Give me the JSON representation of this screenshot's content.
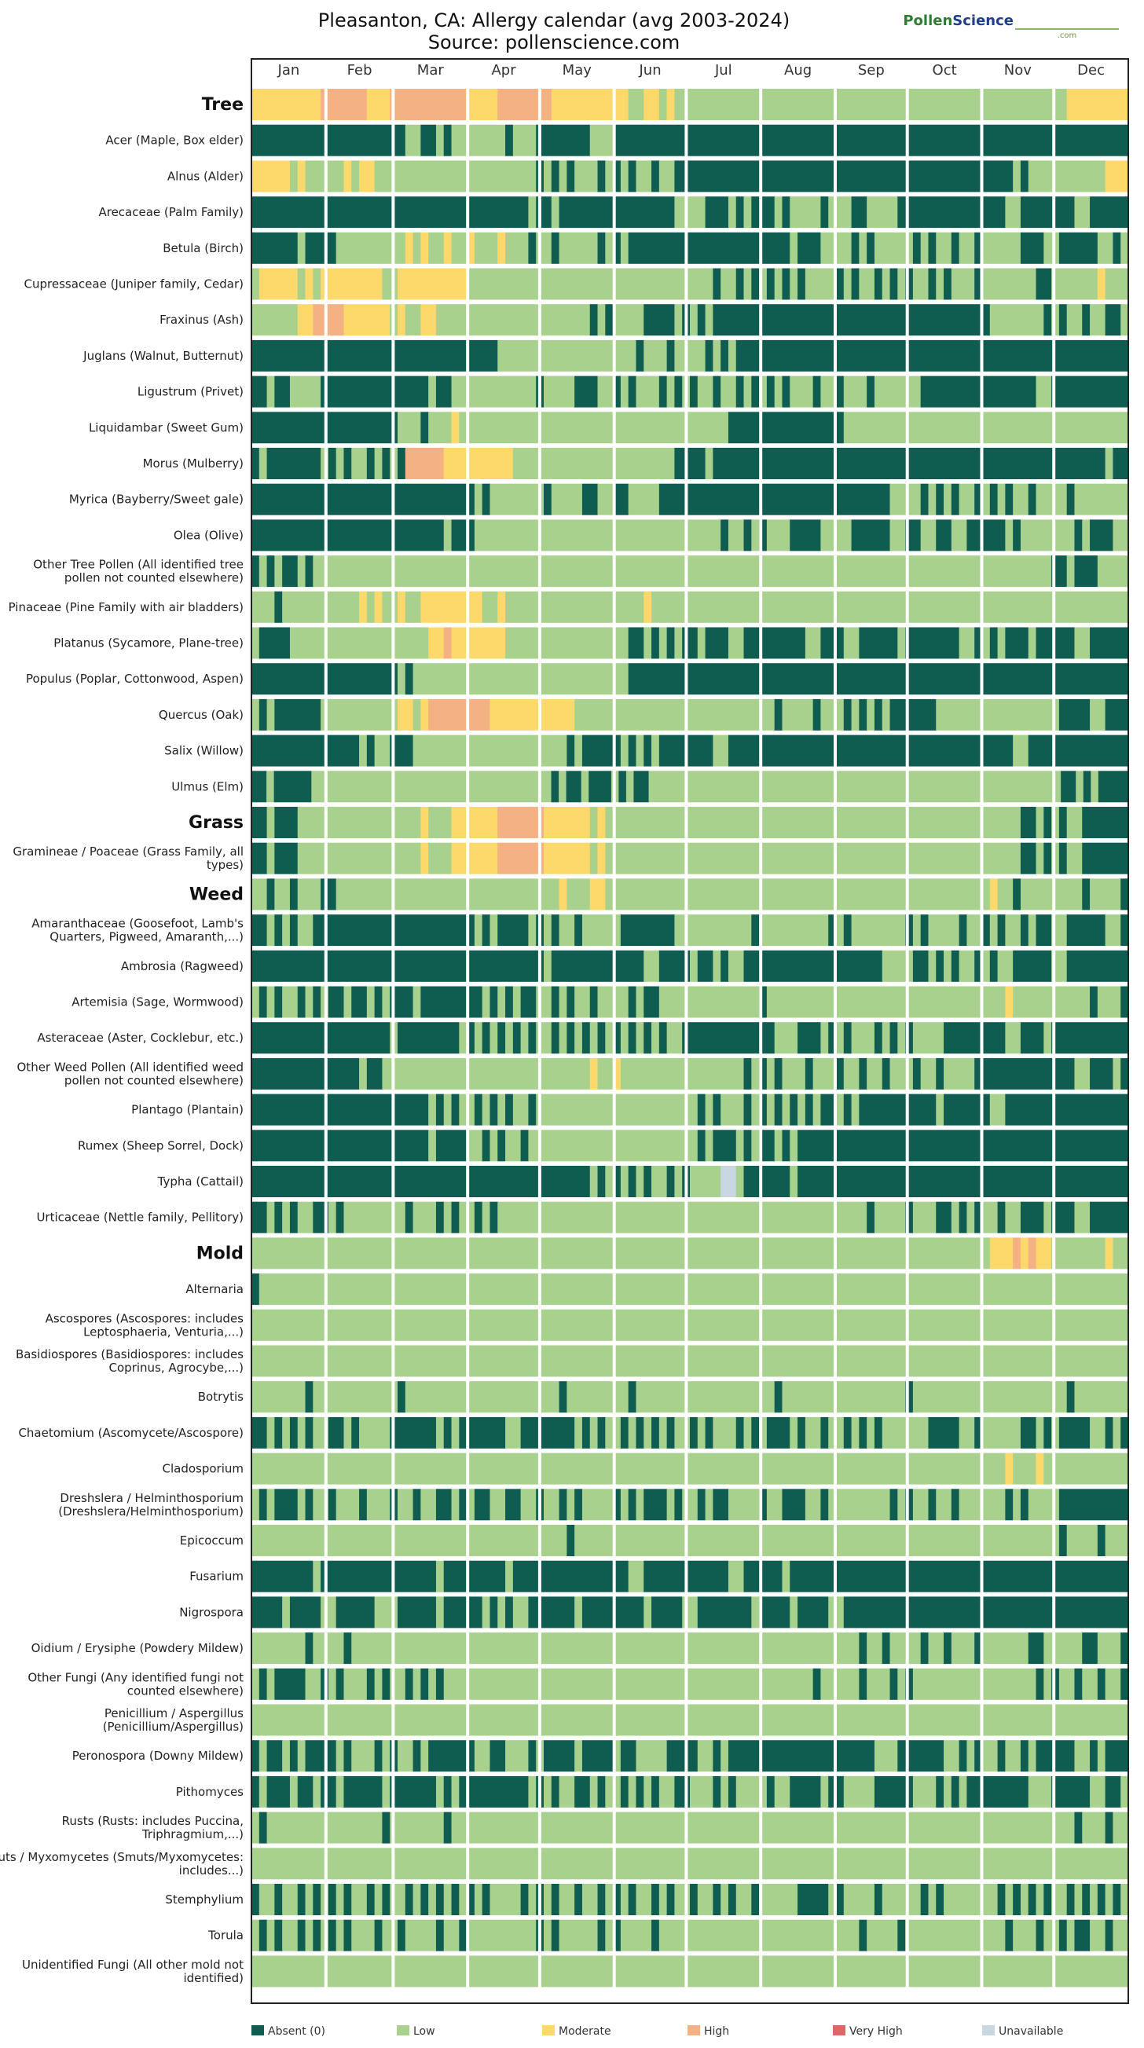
{
  "title_line1": "Pleasanton, CA: Allergy calendar (avg 2003-2024)",
  "title_line2": "Source: pollenscience.com",
  "logo": {
    "part1": "Pollen",
    "part2": "Science",
    "sub": ".com"
  },
  "chart_data": {
    "type": "heatmap",
    "x_unit": "day-of-year period (month)",
    "months": [
      "Jan",
      "Feb",
      "Mar",
      "Apr",
      "May",
      "Jun",
      "Jul",
      "Aug",
      "Sep",
      "Oct",
      "Nov",
      "Dec"
    ],
    "levels": [
      {
        "code": 0,
        "name": "Absent (0)",
        "color": "#0f5c50"
      },
      {
        "code": 1,
        "name": "Low",
        "color": "#a9d18e"
      },
      {
        "code": 2,
        "name": "Moderate",
        "color": "#fcd96a"
      },
      {
        "code": 3,
        "name": "High",
        "color": "#f4b183"
      },
      {
        "code": 4,
        "name": "Very High",
        "color": "#e06666"
      },
      {
        "code": 5,
        "name": "Unavailable",
        "color": "#c9d7e3"
      }
    ],
    "series": [
      {
        "name": "Tree",
        "category": true,
        "pattern": "TTTTTTTTTTTTTTTTTTTTTTTTTTTTTTTTTTTTTTTTTTTTTTTTTTTTTTTTTTTTTTTTTTTTTTTTTTTTTTTTTTTTTTTTTTTTTTTTTTTTTTTTTTTT",
        "pat": "222222222333333222333333333322223333333222222222211221211111111111111111111111111111111111111111111111111122222222"
      },
      {
        "name": "Acer (Maple, Box elder)",
        "pat": "000000000000000000001100101111111011100000001110000000000000000000000000000000000000000000000000000000000000000000"
      },
      {
        "name": "Alnus (Alder)",
        "pat": "222221211111212211111111111111111111101010111010101101100000000000000000000000000000000000000000000101111111111222"
      },
      {
        "name": "Arecaceae (Palm Family)",
        "pat": "000000000000000000000000000000000000100100000000000000011110001010001011110111001111000000000000001100000001100000"
      },
      {
        "name": "Betula (Birch)",
        "pat": "000000100001111111112121121121112111011011111010100000000000000000000010001111010111110101101101111100011000001101"
      },
      {
        "name": "Cupressaceae (Juniper family, Cedar)",
        "pat": "122222121222222221122222222211111111111111111111111111111111011010101010111101011010101101011101111111001111112111"
      },
      {
        "name": "Fraxinus (Ash)",
        "pat": "111111223333222222121122111111111111111111110101111000010101000000000000000000000000000000000000111111101011011001"
      },
      {
        "name": "Juglans (Walnut, Butternut)",
        "pat": "000000000000000000000000000000001111111111111111110111011110101000000000000000000000000000000000000000000000000000"
      },
      {
        "name": "Ligustrum (Privet)",
        "pat": "001001111000000000000001001111111111101111000110101110101011011010101011101101110111111000000000000000110000000000"
      },
      {
        "name": "Liquidambar (Sweet Gum)",
        "pat": "000000000000000000011101112111111111111111111111111111111111110000000000000001111111111111111111111111111111111111"
      },
      {
        "name": "Morus (Mulberry)",
        "pat": "010000000101011010103333322222222211111111111111111111100001000000000000000000000000000000000000000000000000000100"
      },
      {
        "name": "Myrica (Bayberry/Sweet gale)",
        "pat": "000000000000000000000000000001011111110111100110011110000000000000000000000000000001111010101101010110111101111111"
      },
      {
        "name": "Olea (Olive)",
        "pat": "000000000000000000000000010001111111111111111111111111111111101101011100001111000001100110011000001011111110100011"
      },
      {
        "name": "Other Tree Pollen (All identified tree pollen not counted elsewhere)",
        "pat": "010100101111111111111111111111111111111111111111111111111111111111111111111111111111111111111111111111110010001111"
      },
      {
        "name": "Pinaceae (Pine Family with air bladders)",
        "pat": "111011111111112121121122222222112111111111111111111211111111111111111111111111111111111111111111111111111111111111"
      },
      {
        "name": "Platanus (Sycamore, Plane-tree)",
        "pat": "100001111111111111111112232222222111111111111111100101010010001100000000110001100000100000001101010001000001100000"
      },
      {
        "name": "Populus (Poplar, Cottonwood, Aspen)",
        "pat": "000000000000000000010111111111111111111111111111100000000000000000000000000000000000000000000000000000000000000000"
      },
      {
        "name": "Quercus (Oak)",
        "pat": "101000000111111111122123333333322222222222111111111111111111111111110111101110101010000001111111111111111000011000"
      },
      {
        "name": "Salix (Willow)",
        "pat": "000000000000001011000111111111111111111110100000101010000000110000000000000000000000000000000000000110000000000000"
      },
      {
        "name": "Ulmus (Elm)",
        "pat": "001000001111111111111111111111111111111101001000101001111111111111111111111111111111111111111111111111111111001010000"
      },
      {
        "name": "Grass",
        "category": true,
        "pat": "001000111111111111111121112222223333332222221211111111111111111111111111111111111111111111111111111100101011000000"
      },
      {
        "name": "Gramineae / Poaceae (Grass Family, all types)",
        "pat": "001000111111111111111121112222223333332222221211111111111111111111111111111111111111111111111111111100101011000000"
      },
      {
        "name": "Weed",
        "category": true,
        "pat": "110110111001111111111111111111111111111121112211111111111111111111111111111111111111111111111111211011111111011110"
      },
      {
        "name": "Amaranthaceae (Goosefoot, Lamb's Quarters, Pigweed, Amaranth,...)",
        "pat": "001010110000000000000000000001010000101011011111000000011111111110111111111010111111101011110110101101001100000110"
      },
      {
        "name": "Ambrosia (Ragweed)",
        "pat": "000000000000000000000000000000000000001000000000000110000100101100000000000000000011110010101101011000001100000000"
      },
      {
        "name": "Artemisia (Sage, Wormwood)",
        "pat": "101011010100100101000100000000101010011010110111101001111111111111011111111111111111111111111111112111111111101110"
      },
      {
        "name": "Asteraceae (Aster, Cocklebur, etc.)",
        "pat": "000000000000000000100000000101010101011010101010101010110000000000001110001010111010101111000000001100010000000000"
      },
      {
        "name": "Other Weed Pollen (All identified weed pollen not counted elsewhere)",
        "pat": "000000000000001001111111111111111111111111112112111111111111111101010111011101101101110110111100000000000001100010"
      },
      {
        "name": "Plantago (Plantain)",
        "pat": "000000000000000000000001010110101011011111111111111111111101011101010101010010100000000001000000110000000000000000"
      },
      {
        "name": "Rumex (Sheep Sorrel, Dock)",
        "pat": "000000000000000000000001000011010110111111111111111111111101000101001010000000000000000000000000000000000000000000"
      },
      {
        "name": "Typha (Cattail)",
        "pat": "000000000000000000000000000000000000000000001010101011010111155100000010000000000000000000000000000000000000000000"
      },
      {
        "name": "Urticaceae (Nettle family, Pellitory)",
        "pat": "001010110010111111110111010110101111111111111111111111111111111111111111111111110111101110010101101100010001100000"
      },
      {
        "name": "Mold",
        "category": true,
        "pat": "111111111111111111111111111111111111111111111111111111111111111111111111111111111111111111111111222323221111111211"
      },
      {
        "name": "Alternaria",
        "pat": "011111111111111111111111111111111111111111111111111111111111111111111111111111111111111111111111111111111111111111"
      },
      {
        "name": "Ascospores (Ascospores: includes Leptosphaeria, Venturia,...)",
        "pat": "111111111111111111111111111111111111111111111111111111111111111111111111111111111111111111111111111111111111111111"
      },
      {
        "name": "Basidiospores (Basidiospores: includes Coprinus, Agrocybe,...)",
        "pat": "111111111111111111111111111111111111111111111111111111111111111111111111111111111111111111111111111111111111111111"
      },
      {
        "name": "Botrytis",
        "pat": "111111101111111111101111111111111111111101111111101111111111111111110111111111111111101111111111111111111101111111"
      },
      {
        "name": "Chaetomium (Ascomycete/Ascospore)",
        "pat": "001010101100101111000000101000000110000000101011010101011010111010100010110110101011111100001101111100101000011010"
      },
      {
        "name": "Cladosporium",
        "pat": "111111111111111111111111111111111111111111111111111111111111111111111111111111111111111111111111112111211111111111"
      },
      {
        "name": "Dreshslera / Helminthosporium (Dreshslera/Helminthosporium)",
        "pat": "101000101101110111011011001010011001101101011110101000101101001111011000110111111110101101101111110101111000000000"
      },
      {
        "name": "Epicoccum",
        "pat": "111111111111111111111111111111111111111110111111111111111111111111111111111111111111111111111111111111111011110111"
      },
      {
        "name": "Fusarium",
        "pat": "000000001000000000000000100000000100000000000000011000000000001100000100000000000000000000000000000000000000000000"
      },
      {
        "name": "Nigrospora",
        "pat": "000010000110000011100000100000101011000000100000000100001100000001000010000110000000000000000000000000000000000000"
      },
      {
        "name": "Oidium / Erysiphe (Powdery Mildew)",
        "pat": "111111101111011111111111111111111111111111111111111111111111111111111111111111101101111011011101111110011111001110"
      },
      {
        "name": "Other Fungi (Any identified fungi not counted elsewhere)",
        "pat": "101000011010111010110101011111111111111111111111111111111111111111111111101111101110101111111111111111010110110110"
      },
      {
        "name": "Penicillium / Aspergillus (Penicillium/Aspergillus)",
        "pat": "111111111111111111111111111111111111111111111111111111111111111111111111111111111111111111111111111111111111111111"
      },
      {
        "name": "Peronospora (Downy Mildew)",
        "pat": "010010100001011101011010000001100111010000100001001111000011010000000000000000000111000000110101101101000001101000"
      },
      {
        "name": "Pithomyces",
        "pat": "010001001001000001000000101000000000101011001011010101100111010111101100001001111000001110101000000001110000011001"
      },
      {
        "name": "Rusts (Rusts: includes Puccina, Triphragmium,...)",
        "pat": "101111111111111110111111101111111111111111111111111111111111111111111111111111111111111111111111111111111110111011"
      },
      {
        "name": "Smuts / Myxomycetes (Smuts/Myxomycetes: includes...)",
        "pat": "111111111111111111111111111111111111111111111111111111111111111111111111111111111111111111111111111111111111111111"
      },
      {
        "name": "Stemphylium",
        "pat": "011011010101011010110101010101011110101011011010101101011011010110111110000101111011111010111111101010101101010101"
      },
      {
        "name": "Torula",
        "pat": "101011010101011101101111011011111111101011111010111101111111111111111111111111101111011111111111110111011010011011"
      },
      {
        "name": "Unidentified Fungi (All other mold not identified)",
        "pat": "111111111111111111111111111111111111111111111111111111111111111111111111111111111111111111111111111111111111111111"
      }
    ]
  }
}
